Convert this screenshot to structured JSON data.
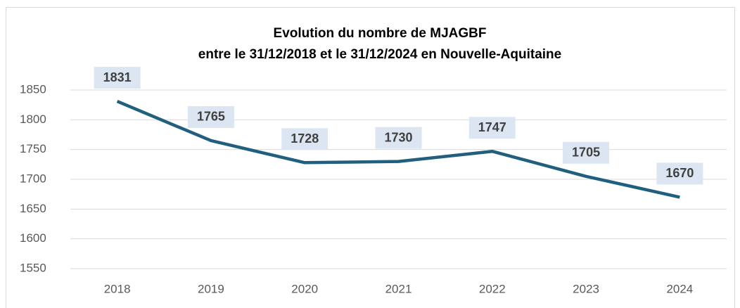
{
  "chart_data": {
    "type": "line",
    "title": [
      "Evolution du nombre de MJAGBF",
      "entre le 31/12/2018 et le 31/12/2024 en Nouvelle-Aquitaine"
    ],
    "categories": [
      "2018",
      "2019",
      "2020",
      "2021",
      "2022",
      "2023",
      "2024"
    ],
    "values": [
      1831,
      1765,
      1728,
      1730,
      1747,
      1705,
      1670
    ],
    "color": "#215f7e",
    "ylim": [
      1550,
      1850
    ],
    "yticks": [
      1550,
      1600,
      1650,
      1700,
      1750,
      1800,
      1850
    ],
    "grid": true
  }
}
